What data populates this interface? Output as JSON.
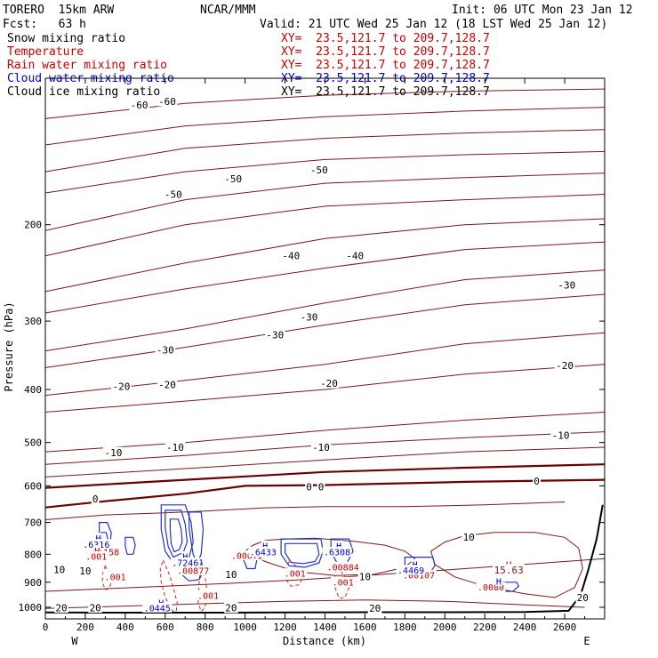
{
  "header": {
    "model": "TORERO  15km ARW",
    "center": "NCAR/MMM",
    "init": "Init: 06 UTC Mon 23 Jan 12",
    "fcst": "Fcst:   63 h",
    "valid": "Valid: 21 UTC Wed 25 Jan 12 (18 LST Wed 25 Jan 12)"
  },
  "legend": [
    {
      "name": "Snow mixing ratio",
      "xy": "XY=  23.5,121.7 to 209.7,128.7",
      "color": "#000000",
      "xy_color": "#cc0000"
    },
    {
      "name": "Temperature",
      "xy": "XY=  23.5,121.7 to 209.7,128.7",
      "color": "#cc0000",
      "xy_color": "#cc0000"
    },
    {
      "name": "Rain water mixing ratio",
      "xy": "XY=  23.5,121.7 to 209.7,128.7",
      "color": "#cc0000",
      "xy_color": "#cc0000"
    },
    {
      "name": "Cloud water mixing ratio",
      "xy": "XY=  23.5,121.7 to 209.7,128.7",
      "color": "#0000cc",
      "xy_color": "#0000cc"
    },
    {
      "name": "Cloud ice mixing ratio",
      "xy": "XY=  23.5,121.7 to 209.7,128.7",
      "color": "#000000",
      "xy_color": "#000000"
    }
  ],
  "chart_data": {
    "type": "line",
    "title": "",
    "xlabel": "Distance (km)",
    "ylabel": "Pressure (hPa)",
    "xlim": [
      0,
      2800
    ],
    "ylim": [
      1050,
      100
    ],
    "y_scale": "log",
    "x_ticks": [
      0,
      200,
      400,
      600,
      800,
      1000,
      1200,
      1400,
      1600,
      1800,
      2000,
      2200,
      2400,
      2600
    ],
    "y_ticks": [
      200,
      300,
      400,
      500,
      600,
      700,
      800,
      900,
      1000
    ],
    "x_end_labels": {
      "left": "W",
      "right": "E"
    },
    "colors": {
      "temperature": "#7a1a1a",
      "zero_isotherm": "#6a0000",
      "rain": "#dd2222",
      "cloud_water": "#2233cc",
      "terrain": "#000000"
    },
    "isotherms": [
      {
        "name": "-60",
        "x": [
          0,
          700,
          1400,
          2100,
          2800
        ],
        "p": [
          128,
          120,
          116,
          114,
          113
        ]
      },
      {
        "name": "-60",
        "x": [
          0,
          700,
          1400,
          2100,
          2800
        ],
        "p": [
          143,
          132,
          127,
          124,
          122
        ]
      },
      {
        "name": "-60",
        "x": [
          0,
          700,
          1400,
          2100,
          2800
        ],
        "p": [
          160,
          145,
          139,
          136,
          134
        ]
      },
      {
        "name": "-60",
        "x": [
          0,
          700,
          1400,
          2100,
          2800
        ],
        "p": [
          175,
          160,
          152,
          149,
          147
        ]
      },
      {
        "name": "-50",
        "x": [
          0,
          700,
          1400,
          2100,
          2800
        ],
        "p": [
          205,
          180,
          168,
          164,
          161
        ]
      },
      {
        "name": "-50",
        "x": [
          0,
          700,
          1400,
          2100,
          2800
        ],
        "p": [
          228,
          200,
          185,
          180,
          176
        ]
      },
      {
        "name": "-40",
        "x": [
          0,
          700,
          1400,
          2100,
          2800
        ],
        "p": [
          265,
          235,
          212,
          200,
          195
        ]
      },
      {
        "name": "-40",
        "x": [
          0,
          700,
          1400,
          2100,
          2800
        ],
        "p": [
          290,
          262,
          240,
          222,
          215
        ]
      },
      {
        "name": "-30",
        "x": [
          0,
          700,
          1400,
          2100,
          2800
        ],
        "p": [
          340,
          310,
          278,
          252,
          242
        ]
      },
      {
        "name": "-30",
        "x": [
          0,
          700,
          1400,
          2100,
          2800
        ],
        "p": [
          365,
          335,
          305,
          280,
          268
        ]
      },
      {
        "name": "-20",
        "x": [
          0,
          700,
          1400,
          2100,
          2800
        ],
        "p": [
          410,
          385,
          360,
          330,
          315
        ]
      },
      {
        "name": "-20",
        "x": [
          0,
          700,
          1400,
          2100,
          2800
        ],
        "p": [
          440,
          420,
          400,
          375,
          360
        ]
      },
      {
        "name": "-10",
        "x": [
          0,
          700,
          1400,
          2100,
          2800
        ],
        "p": [
          520,
          500,
          475,
          455,
          440
        ]
      },
      {
        "name": "-10",
        "x": [
          0,
          700,
          1400,
          2100,
          2800
        ],
        "p": [
          548,
          528,
          505,
          490,
          478
        ]
      },
      {
        "name": "-10",
        "x": [
          0,
          700,
          1400,
          2100,
          2800
        ],
        "p": [
          578,
          558,
          538,
          520,
          510
        ]
      },
      {
        "name": "0",
        "x": [
          0,
          700,
          1400,
          2100,
          2800
        ],
        "p": [
          605,
          585,
          566,
          556,
          548
        ]
      },
      {
        "name": "0",
        "x": [
          0,
          300,
          700,
          1000,
          1400,
          2100,
          2800
        ],
        "p": [
          657,
          640,
          620,
          600,
          598,
          590,
          585
        ]
      },
      {
        "name": "10",
        "x": [
          0,
          300,
          600,
          800,
          1100,
          1400,
          1800,
          2200,
          2600
        ],
        "p": [
          692,
          678,
          672,
          667,
          658,
          655,
          655,
          650,
          642
        ]
      },
      {
        "name": "10",
        "x": [
          0,
          300,
          600,
          900,
          1300,
          1700,
          2100,
          2500,
          2800
        ],
        "p": [
          935,
          925,
          915,
          905,
          890,
          870,
          850,
          830,
          815
        ]
      },
      {
        "name": "20",
        "x": [
          0,
          400,
          800,
          1200,
          1600,
          2000,
          2400,
          2700
        ],
        "p": [
          1005,
          995,
          985,
          975,
          970,
          975,
          990,
          1000
        ]
      }
    ],
    "isotherm_labels": [
      {
        "text": "-60",
        "x": 470,
        "p": 121
      },
      {
        "text": "-60",
        "x": 610,
        "p": 119
      },
      {
        "text": "-50",
        "x": 640,
        "p": 176
      },
      {
        "text": "-50",
        "x": 940,
        "p": 165
      },
      {
        "text": "-50",
        "x": 1370,
        "p": 159
      },
      {
        "text": "-40",
        "x": 1230,
        "p": 228
      },
      {
        "text": "-40",
        "x": 1550,
        "p": 228
      },
      {
        "text": "-30",
        "x": 600,
        "p": 339
      },
      {
        "text": "-30",
        "x": 1150,
        "p": 318
      },
      {
        "text": "-30",
        "x": 1320,
        "p": 295
      },
      {
        "text": "-30",
        "x": 2610,
        "p": 258
      },
      {
        "text": "-20",
        "x": 380,
        "p": 395
      },
      {
        "text": "-20",
        "x": 610,
        "p": 392
      },
      {
        "text": "-20",
        "x": 1420,
        "p": 390
      },
      {
        "text": "-20",
        "x": 2600,
        "p": 362
      },
      {
        "text": "-10",
        "x": 340,
        "p": 522
      },
      {
        "text": "-10",
        "x": 650,
        "p": 510
      },
      {
        "text": "-10",
        "x": 1380,
        "p": 510
      },
      {
        "text": "-10",
        "x": 2580,
        "p": 485
      },
      {
        "text": "0",
        "x": 250,
        "p": 634
      },
      {
        "text": "0",
        "x": 1320,
        "p": 603
      },
      {
        "text": "0",
        "x": 1380,
        "p": 603
      },
      {
        "text": "0",
        "x": 2460,
        "p": 588
      },
      {
        "text": "10",
        "x": 2120,
        "p": 745
      },
      {
        "text": "10",
        "x": 70,
        "p": 853
      },
      {
        "text": "10",
        "x": 200,
        "p": 858
      },
      {
        "text": "10",
        "x": 930,
        "p": 872
      },
      {
        "text": "10",
        "x": 1600,
        "p": 880
      },
      {
        "text": "20",
        "x": 80,
        "p": 1002
      },
      {
        "text": "20",
        "x": 250,
        "p": 1002
      },
      {
        "text": "20",
        "x": 930,
        "p": 1003
      },
      {
        "text": "20",
        "x": 1650,
        "p": 1005
      },
      {
        "text": "20",
        "x": 2690,
        "p": 960
      }
    ],
    "warm_loops": [
      {
        "name": "10",
        "x": [
          1000,
          1040,
          1100,
          1200,
          1350,
          1550,
          1700,
          1800,
          1850,
          1800,
          1650,
          1450,
          1250,
          1100,
          1000
        ],
        "p": [
          790,
          770,
          755,
          750,
          748,
          758,
          770,
          790,
          815,
          845,
          870,
          875,
          860,
          825,
          790
        ]
      },
      {
        "name": "10",
        "x": [
          1930,
          2000,
          2100,
          2250,
          2450,
          2600,
          2670,
          2690,
          2650,
          2550,
          2400,
          2200,
          2050,
          1950,
          1930
        ],
        "p": [
          790,
          760,
          740,
          730,
          730,
          745,
          780,
          850,
          920,
          960,
          945,
          915,
          880,
          835,
          790
        ]
      }
    ],
    "rain_water": [
      {
        "name": ".001",
        "x": [
          300,
          320,
          330,
          320,
          300,
          285,
          290,
          300
        ],
        "p": [
          840,
          870,
          900,
          925,
          928,
          900,
          860,
          840
        ]
      },
      {
        "name": ".001",
        "x": [
          590,
          620,
          640,
          660,
          655,
          640,
          600,
          580,
          575,
          590
        ],
        "p": [
          820,
          870,
          920,
          980,
          1018,
          1018,
          960,
          900,
          850,
          820
        ]
      },
      {
        "name": ".001",
        "x": [
          780,
          800,
          810,
          800,
          780,
          765,
          770,
          780
        ],
        "p": [
          820,
          880,
          940,
          1000,
          1018,
          980,
          900,
          820
        ]
      },
      {
        "name": ".001",
        "x": [
          1220,
          1270,
          1290,
          1270,
          1230,
          1205,
          1210,
          1220
        ],
        "p": [
          820,
          850,
          880,
          910,
          915,
          890,
          850,
          820
        ]
      },
      {
        "name": ".001",
        "x": [
          1460,
          1500,
          1520,
          1500,
          1470,
          1450,
          1450,
          1460
        ],
        "p": [
          840,
          880,
          920,
          960,
          962,
          920,
          880,
          840
        ]
      }
    ],
    "rain_labels": [
      {
        "text": ".01158",
        "x": 290,
        "p": 793
      },
      {
        "text": ".001",
        "x": 350,
        "p": 880
      },
      {
        "text": ".00877",
        "x": 740,
        "p": 858
      },
      {
        "text": ".001",
        "x": 815,
        "p": 952
      },
      {
        "text": ".00072",
        "x": 1010,
        "p": 805
      },
      {
        "text": ".001",
        "x": 1250,
        "p": 868
      },
      {
        "text": ".00884",
        "x": 1490,
        "p": 845
      },
      {
        "text": ".001",
        "x": 1490,
        "p": 900
      },
      {
        "text": ".00107",
        "x": 1870,
        "p": 874
      },
      {
        "text": ".0080",
        "x": 2230,
        "p": 920
      }
    ],
    "cloud_water": [
      {
        "x": [
          270,
          310,
          330,
          320,
          290,
          270,
          270
        ],
        "p": [
          700,
          700,
          730,
          790,
          790,
          760,
          700
        ]
      },
      {
        "x": [
          280,
          305,
          315,
          300,
          285,
          280
        ],
        "p": [
          730,
          730,
          760,
          780,
          775,
          730
        ]
      },
      {
        "x": [
          400,
          440,
          450,
          440,
          410,
          400,
          400
        ],
        "p": [
          745,
          745,
          770,
          800,
          800,
          775,
          745
        ]
      },
      {
        "x": [
          580,
          700,
          730,
          740,
          720,
          640,
          600,
          580,
          580
        ],
        "p": [
          650,
          650,
          700,
          760,
          810,
          830,
          790,
          720,
          650
        ]
      },
      {
        "x": [
          600,
          680,
          700,
          710,
          690,
          640,
          615,
          600,
          600
        ],
        "p": [
          665,
          665,
          705,
          760,
          795,
          810,
          775,
          715,
          665
        ]
      },
      {
        "x": [
          625,
          665,
          680,
          685,
          670,
          645,
          630,
          625,
          625
        ],
        "p": [
          690,
          690,
          720,
          760,
          785,
          792,
          765,
          720,
          690
        ]
      },
      {
        "x": [
          720,
          780,
          790,
          780,
          760,
          740,
          720,
          720
        ],
        "p": [
          670,
          670,
          720,
          800,
          830,
          800,
          720,
          670
        ]
      },
      {
        "x": [
          680,
          780,
          790,
          770,
          720,
          680,
          670,
          680
        ],
        "p": [
          820,
          820,
          860,
          890,
          895,
          870,
          840,
          820
        ]
      },
      {
        "x": [
          1000,
          1040,
          1060,
          1050,
          1010,
          990,
          1000
        ],
        "p": [
          790,
          790,
          815,
          850,
          850,
          815,
          790
        ]
      },
      {
        "x": [
          1180,
          1380,
          1390,
          1370,
          1300,
          1220,
          1180,
          1180
        ],
        "p": [
          750,
          750,
          790,
          830,
          845,
          840,
          800,
          750
        ]
      },
      {
        "x": [
          1200,
          1360,
          1370,
          1350,
          1290,
          1230,
          1200,
          1200
        ],
        "p": [
          765,
          765,
          800,
          825,
          832,
          828,
          795,
          765
        ]
      },
      {
        "x": [
          1430,
          1520,
          1540,
          1510,
          1460,
          1430,
          1430
        ],
        "p": [
          750,
          750,
          790,
          830,
          830,
          790,
          750
        ]
      },
      {
        "x": [
          1800,
          1940,
          1950,
          1920,
          1820,
          1800,
          1800
        ],
        "p": [
          810,
          810,
          840,
          870,
          870,
          840,
          810
        ]
      },
      {
        "x": [
          2290,
          2360,
          2370,
          2340,
          2300,
          2290
        ],
        "p": [
          900,
          900,
          915,
          935,
          935,
          900
        ]
      }
    ],
    "cloud_labels": [
      {
        "text": "H",
        "x": 265,
        "p": 748,
        "kind": "h"
      },
      {
        "text": ".6316",
        "x": 255,
        "p": 768,
        "kind": "v"
      },
      {
        "text": "H",
        "x": 260,
        "p": 788,
        "kind": "hr"
      },
      {
        "text": ".001",
        "x": 255,
        "p": 808,
        "kind": "vr"
      },
      {
        "text": "H",
        "x": 700,
        "p": 808,
        "kind": "h"
      },
      {
        "text": ".7246",
        "x": 700,
        "p": 830,
        "kind": "v"
      },
      {
        "text": "H",
        "x": 1100,
        "p": 772,
        "kind": "h"
      },
      {
        "text": ".6433",
        "x": 1090,
        "p": 793,
        "kind": "v"
      },
      {
        "text": "H",
        "x": 1470,
        "p": 772,
        "kind": "h"
      },
      {
        "text": ".6308",
        "x": 1460,
        "p": 793,
        "kind": "v"
      },
      {
        "text": "H",
        "x": 1850,
        "p": 835,
        "kind": "h"
      },
      {
        "text": ".4469",
        "x": 1830,
        "p": 856,
        "kind": "v"
      },
      {
        "text": "H",
        "x": 2270,
        "p": 898,
        "kind": "h"
      },
      {
        "text": "H",
        "x": 580,
        "p": 982,
        "kind": "h"
      },
      {
        "text": ".0445",
        "x": 560,
        "p": 1003,
        "kind": "v"
      }
    ],
    "temperature_max": {
      "text": "H",
      "value": "15.63",
      "x": 2320,
      "p": 838
    },
    "terrain": {
      "x": [
        0,
        400,
        800,
        1200,
        1600,
        2000,
        2400,
        2620,
        2680,
        2720,
        2760,
        2790
      ],
      "p": [
        1022,
        1023,
        1023,
        1022,
        1021,
        1021,
        1020,
        1015,
        950,
        850,
        750,
        650
      ]
    }
  }
}
